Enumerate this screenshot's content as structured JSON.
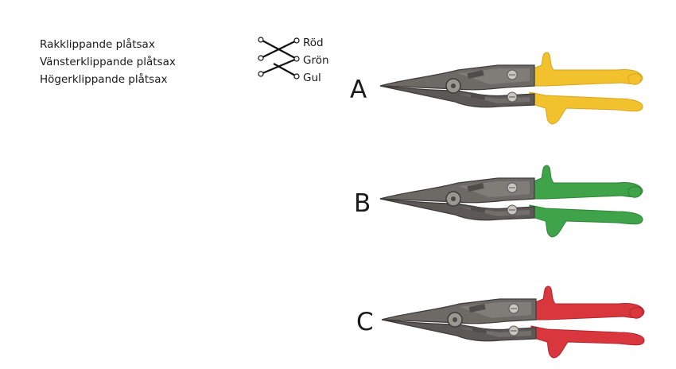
{
  "terms": [
    "Rakklippande plåtsax",
    "Vänsterklippande plåtsax",
    "Högerklippande plåtsax"
  ],
  "colors": [
    "Röd",
    "Grön",
    "Gul"
  ],
  "tools": [
    {
      "label": "A",
      "handle_color": "#f2c22e",
      "handle_shade": "#d9a41a"
    },
    {
      "label": "B",
      "handle_color": "#3fa34a",
      "handle_shade": "#2d8337"
    },
    {
      "label": "C",
      "handle_color": "#d9363e",
      "handle_shade": "#b3242c"
    }
  ]
}
